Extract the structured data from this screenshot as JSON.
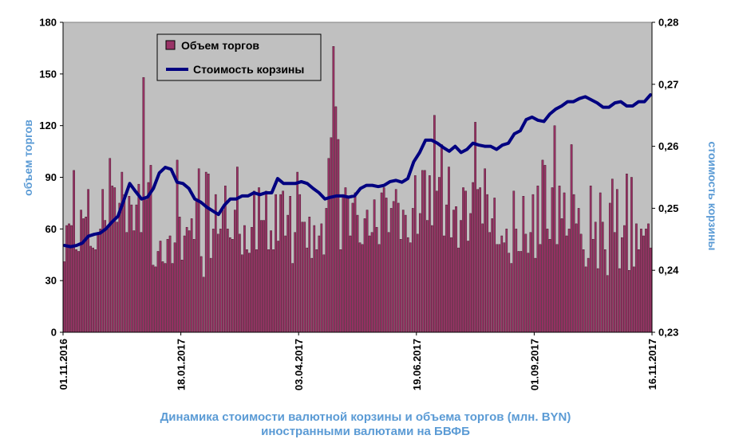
{
  "chart_data": {
    "type": "bar",
    "title": "Динамика стоимости валютной корзины и объема торгов (млн. BYN) иностранными валютами на БВФБ",
    "title_lines": [
      "Динамика стоимости валютной корзины и объема торгов (млн. BYN)",
      "иностранными валютами на БВФБ"
    ],
    "ylabel": "объем торгов",
    "y2label": "стоимость корзины",
    "ylim": [
      0,
      180
    ],
    "yticks": [
      "0",
      "30",
      "60",
      "90",
      "120",
      "150",
      "180"
    ],
    "y2lim": [
      0.23,
      0.28
    ],
    "y2ticks": [
      "0,23",
      "0,24",
      "0,25",
      "0,26",
      "0,27",
      "0,28"
    ],
    "xticks": [
      "01.11.2016",
      "18.01.2017",
      "03.04.2017",
      "19.06.2017",
      "01.09.2017",
      "16.11.2017"
    ],
    "legend_position": "top-left",
    "grid": false,
    "colors": {
      "plot_bg": "#c0c0c0",
      "bar": "#993366",
      "bar_edge": "#3a0a1e",
      "line": "#000080",
      "axis_title": "#5b9bd5"
    },
    "series": [
      {
        "name": "Объем торгов",
        "kind": "bar",
        "axis": "left",
        "values": [
          41,
          62,
          63,
          62,
          94,
          48,
          47,
          71,
          66,
          67,
          83,
          50,
          49,
          48,
          57,
          60,
          83,
          65,
          60,
          101,
          85,
          84,
          64,
          75,
          93,
          80,
          58,
          79,
          74,
          59,
          74,
          86,
          58,
          148,
          77,
          87,
          97,
          39,
          38,
          47,
          53,
          41,
          40,
          54,
          56,
          40,
          52,
          100,
          67,
          42,
          56,
          61,
          59,
          66,
          54,
          77,
          95,
          44,
          32,
          93,
          92,
          43,
          60,
          80,
          57,
          60,
          71,
          85,
          60,
          55,
          54,
          71,
          96,
          57,
          45,
          62,
          48,
          46,
          61,
          82,
          48,
          84,
          65,
          65,
          82,
          48,
          59,
          48,
          80,
          53,
          80,
          82,
          56,
          68,
          79,
          40,
          58,
          93,
          80,
          64,
          64,
          49,
          67,
          43,
          62,
          48,
          56,
          63,
          45,
          72,
          101,
          113,
          166,
          131,
          112,
          48,
          80,
          84,
          78,
          56,
          75,
          81,
          68,
          52,
          51,
          66,
          71,
          56,
          58,
          77,
          61,
          51,
          81,
          84,
          78,
          58,
          72,
          76,
          83,
          75,
          54,
          71,
          68,
          55,
          52,
          72,
          91,
          57,
          69,
          94,
          94,
          65,
          91,
          62,
          126,
          82,
          90,
          109,
          56,
          74,
          96,
          55,
          71,
          73,
          49,
          65,
          84,
          82,
          53,
          69,
          87,
          122,
          83,
          84,
          63,
          95,
          80,
          58,
          66,
          78,
          51,
          51,
          56,
          52,
          60,
          46,
          40,
          82,
          60,
          47,
          47,
          79,
          57,
          46,
          58,
          80,
          43,
          85,
          51,
          100,
          97,
          60,
          54,
          84,
          120,
          51,
          85,
          66,
          81,
          56,
          60,
          109,
          80,
          63,
          72,
          57,
          48,
          38,
          43,
          85,
          54,
          64,
          37,
          81,
          64,
          48,
          33,
          75,
          89,
          58,
          83,
          37,
          55,
          62,
          92,
          36,
          90,
          38,
          63,
          48,
          60,
          56,
          60,
          63,
          49
        ]
      },
      {
        "name": "Стоимость корзины",
        "kind": "line",
        "axis": "right",
        "values": [
          0.244,
          0.2438,
          0.244,
          0.2444,
          0.2455,
          0.2458,
          0.246,
          0.2467,
          0.2478,
          0.2487,
          0.2513,
          0.254,
          0.2527,
          0.2515,
          0.2518,
          0.2532,
          0.2557,
          0.2566,
          0.2563,
          0.2542,
          0.254,
          0.2532,
          0.2515,
          0.251,
          0.2502,
          0.2496,
          0.249,
          0.2505,
          0.2515,
          0.2515,
          0.252,
          0.252,
          0.2525,
          0.2522,
          0.2525,
          0.2525,
          0.2548,
          0.254,
          0.254,
          0.254,
          0.2543,
          0.254,
          0.2532,
          0.2525,
          0.2515,
          0.2518,
          0.252,
          0.252,
          0.2518,
          0.252,
          0.2532,
          0.2537,
          0.2537,
          0.2535,
          0.2537,
          0.2543,
          0.2545,
          0.2542,
          0.2548,
          0.2575,
          0.259,
          0.261,
          0.261,
          0.2605,
          0.2598,
          0.2592,
          0.26,
          0.259,
          0.2595,
          0.2605,
          0.2602,
          0.26,
          0.26,
          0.2595,
          0.2602,
          0.2605,
          0.262,
          0.2625,
          0.2643,
          0.2647,
          0.2642,
          0.264,
          0.2652,
          0.266,
          0.2665,
          0.2672,
          0.2672,
          0.2677,
          0.268,
          0.2675,
          0.267,
          0.2663,
          0.2663,
          0.267,
          0.2672,
          0.2665,
          0.2665,
          0.2672,
          0.2672,
          0.2683
        ]
      }
    ]
  }
}
